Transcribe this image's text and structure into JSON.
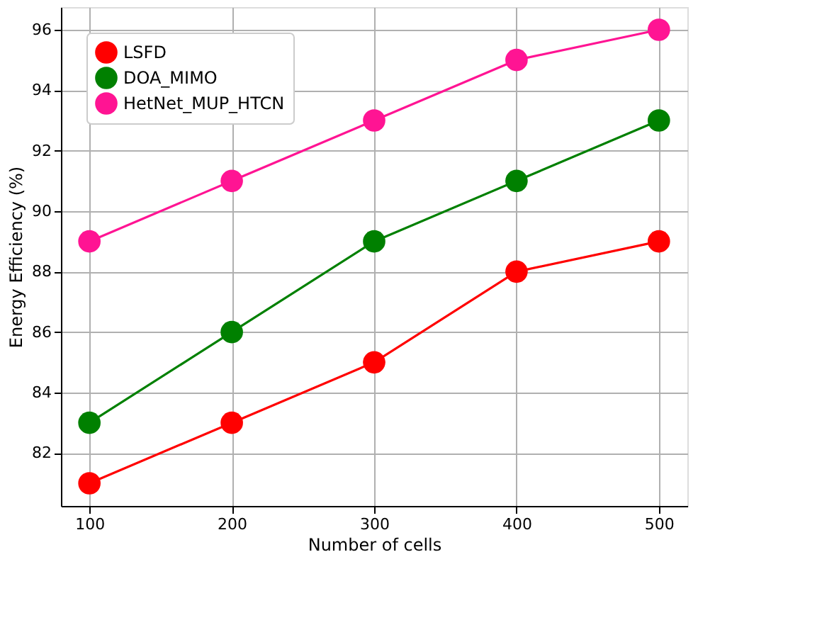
{
  "chart_data": {
    "type": "line",
    "xlabel": "Number of cells",
    "ylabel": "Energy Efficiency (%)",
    "x": [
      100,
      200,
      300,
      400,
      500
    ],
    "series": [
      {
        "name": "LSFD",
        "color": "#ff0000",
        "values": [
          81,
          83,
          85,
          88,
          89
        ]
      },
      {
        "name": "DOA_MIMO",
        "color": "#008000",
        "values": [
          83,
          86,
          89,
          91,
          93
        ]
      },
      {
        "name": "HetNet_MUP_HTCN",
        "color": "#ff1493",
        "values": [
          89,
          91,
          93,
          95,
          96
        ]
      }
    ],
    "xlim": [
      80,
      520
    ],
    "ylim": [
      80.25,
      96.75
    ],
    "xticks": [
      100,
      200,
      300,
      400,
      500
    ],
    "yticks": [
      82,
      84,
      86,
      88,
      90,
      92,
      94,
      96
    ],
    "grid": true,
    "legend": "top left",
    "marker": "circle",
    "line_style": "solid"
  }
}
